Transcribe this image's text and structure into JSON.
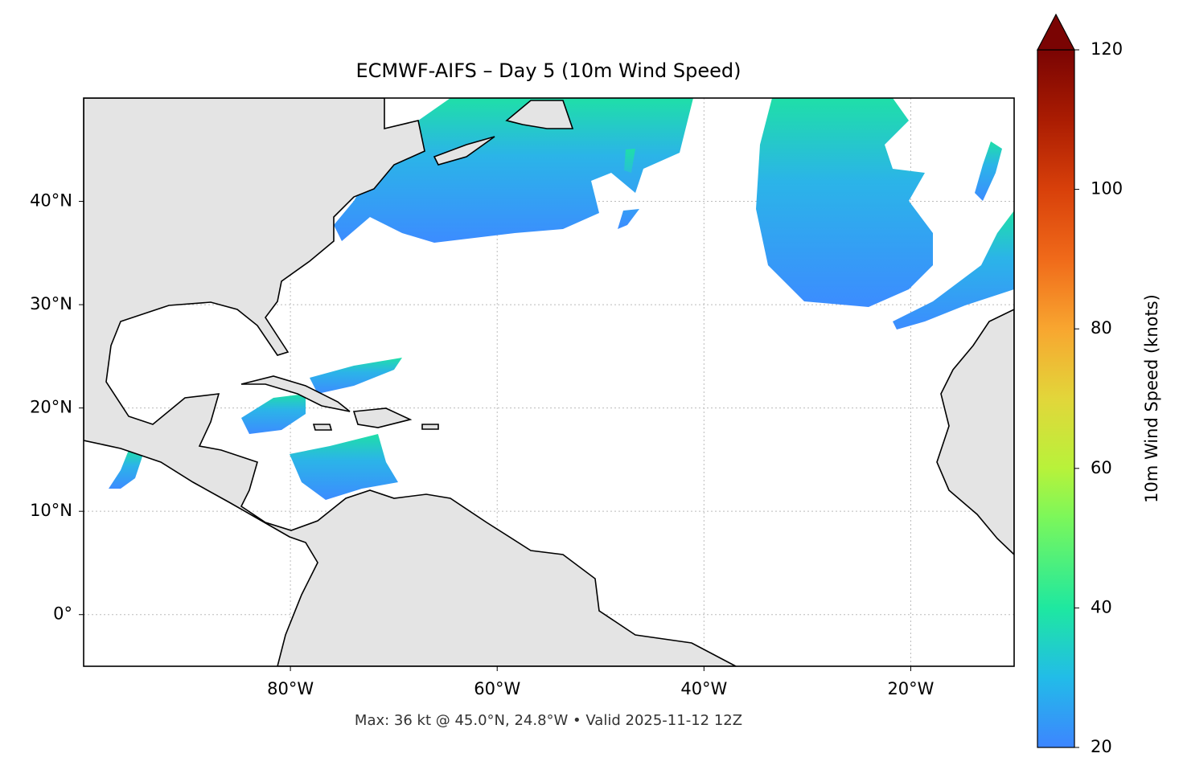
{
  "title": "ECMWF-AIFS – Day 5 (10m Wind Speed)",
  "map": {
    "lonlim": [
      -100,
      -10
    ],
    "latlim": [
      -5,
      50
    ],
    "lon_ticks": [
      {
        "value": -80,
        "label": "80°W"
      },
      {
        "value": -60,
        "label": "60°W"
      },
      {
        "value": -40,
        "label": "40°W"
      },
      {
        "value": -20,
        "label": "20°W"
      }
    ],
    "lat_ticks": [
      {
        "value": 0,
        "label": "0°"
      },
      {
        "value": 10,
        "label": "10°N"
      },
      {
        "value": 20,
        "label": "20°N"
      },
      {
        "value": 30,
        "label": "30°N"
      },
      {
        "value": 40,
        "label": "40°N"
      }
    ],
    "grid": true
  },
  "colorbar": {
    "label": "10m Wind Speed (knots)",
    "lim": [
      20,
      120
    ],
    "ticks": [
      20,
      40,
      60,
      80,
      100,
      120
    ],
    "extend": "max"
  },
  "footer": "Max: 36 kt @ 45.0°N, 24.8°W • Valid 2025-11-12 12Z"
}
